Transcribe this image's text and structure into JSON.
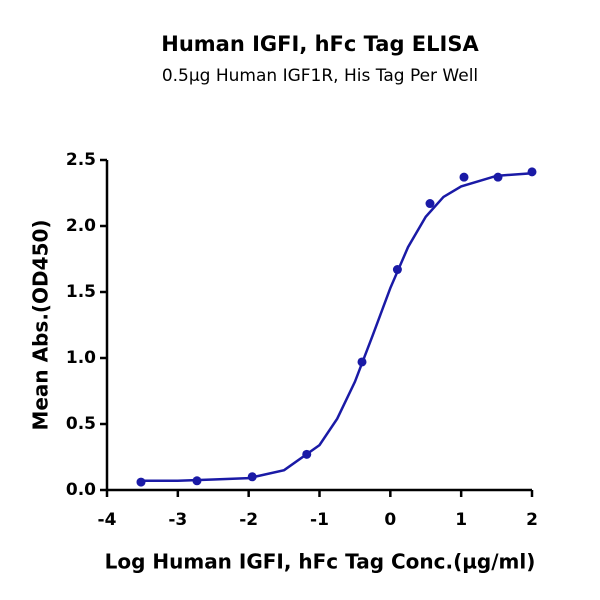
{
  "chart_data": {
    "type": "scatter",
    "title": "Human IGFI, hFc Tag ELISA",
    "subtitle": "0.5µg Human IGF1R, His Tag Per Well",
    "x_label": "Log Human IGFI, hFc Tag Conc.(µg/ml)",
    "y_label": "Mean Abs.(OD450)",
    "xlim": [
      -4,
      2
    ],
    "xticks": [
      -4,
      -3,
      -2,
      -1,
      0,
      1,
      2
    ],
    "ylim": [
      0,
      2.5
    ],
    "yticks": [
      {
        "value": 0,
        "label": "0.0"
      },
      {
        "value": 0.5,
        "label": "0.5"
      },
      {
        "value": 1,
        "label": "1.0"
      },
      {
        "value": 1.5,
        "label": "1.5"
      },
      {
        "value": 2,
        "label": "2.0"
      },
      {
        "value": 2.5,
        "label": "2.5"
      }
    ],
    "series": [
      {
        "mode": "line",
        "color": "#1a1aa6",
        "x": [
          -3.5,
          -3,
          -2.5,
          -2,
          -1.5,
          -1,
          -0.75,
          -0.5,
          -0.25,
          0,
          0.25,
          0.5,
          0.75,
          1,
          1.5,
          2
        ],
        "values": [
          0.07,
          0.07,
          0.08,
          0.09,
          0.15,
          0.34,
          0.54,
          0.82,
          1.17,
          1.53,
          1.84,
          2.07,
          2.22,
          2.3,
          2.38,
          2.4
        ]
      },
      {
        "mode": "markers",
        "color": "#1a1aa6",
        "x": [
          -3.52,
          -2.73,
          -1.95,
          -1.18,
          -0.4,
          0.1,
          0.56,
          1.04,
          1.52,
          2.0
        ],
        "values": [
          0.06,
          0.07,
          0.1,
          0.27,
          0.97,
          1.67,
          2.17,
          2.37,
          2.37,
          2.41
        ]
      }
    ]
  }
}
